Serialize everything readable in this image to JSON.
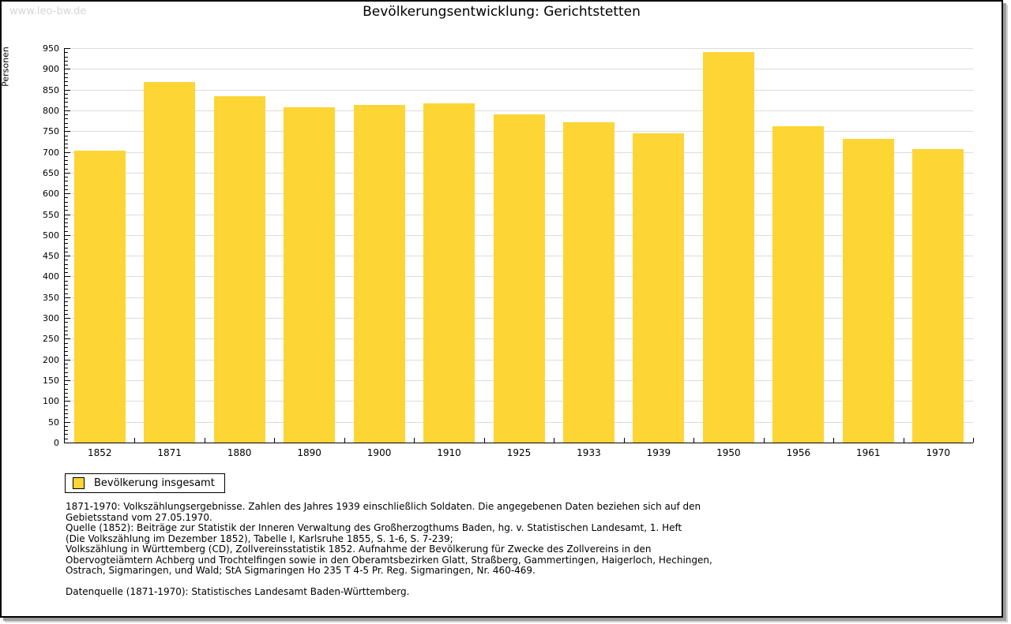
{
  "watermark": "www.leo-bw.de",
  "chart_data": {
    "type": "bar",
    "title": "Bevölkerungsentwicklung: Gerichtstetten",
    "ylabel": "Personen",
    "xlabel": "",
    "categories": [
      "1852",
      "1871",
      "1880",
      "1890",
      "1900",
      "1910",
      "1925",
      "1933",
      "1939",
      "1950",
      "1956",
      "1961",
      "1970"
    ],
    "values": [
      703,
      869,
      835,
      807,
      813,
      817,
      790,
      772,
      745,
      941,
      762,
      731,
      706
    ],
    "ylim": [
      0,
      950
    ],
    "y_tick_step": 50,
    "y_minor_tick_step": 10,
    "grid": "horizontal-major",
    "gridline_color": "#dcdcdc",
    "bar_color": "#FDD535",
    "legend_position": "bottom-left",
    "legend_entries": [
      {
        "label": "Bevölkerung insgesamt",
        "color": "#FDD535"
      }
    ]
  },
  "footnotes": {
    "source_lines": [
      "1871-1970: Volkszählungsergebnisse. Zahlen des Jahres 1939 einschließlich Soldaten. Die angegebenen Daten beziehen sich auf den",
      "Gebietsstand vom 27.05.1970.",
      "Quelle (1852): Beiträge zur Statistik der Inneren Verwaltung des Großherzogthums Baden, hg. v. Statistischen Landesamt, 1. Heft",
      "(Die Volkszählung im Dezember 1852), Tabelle I, Karlsruhe 1855, S. 1-6, S. 7-239;",
      "Volkszählung in Württemberg (CD), Zollvereinsstatistik 1852. Aufnahme der Bevölkerung für Zwecke des Zollvereins in den",
      "Obervogteiämtern Achberg und Trochtelfingen sowie in den Oberamtsbezirken Glatt, Straßberg, Gammertingen, Haigerloch, Hechingen,",
      "Ostrach, Sigmaringen, und Wald; StA Sigmaringen Ho 235 T 4-5 Pr. Reg. Sigmaringen, Nr. 460-469."
    ],
    "datasource": "Datenquelle (1871-1970): Statistisches Landesamt Baden-Württemberg."
  }
}
